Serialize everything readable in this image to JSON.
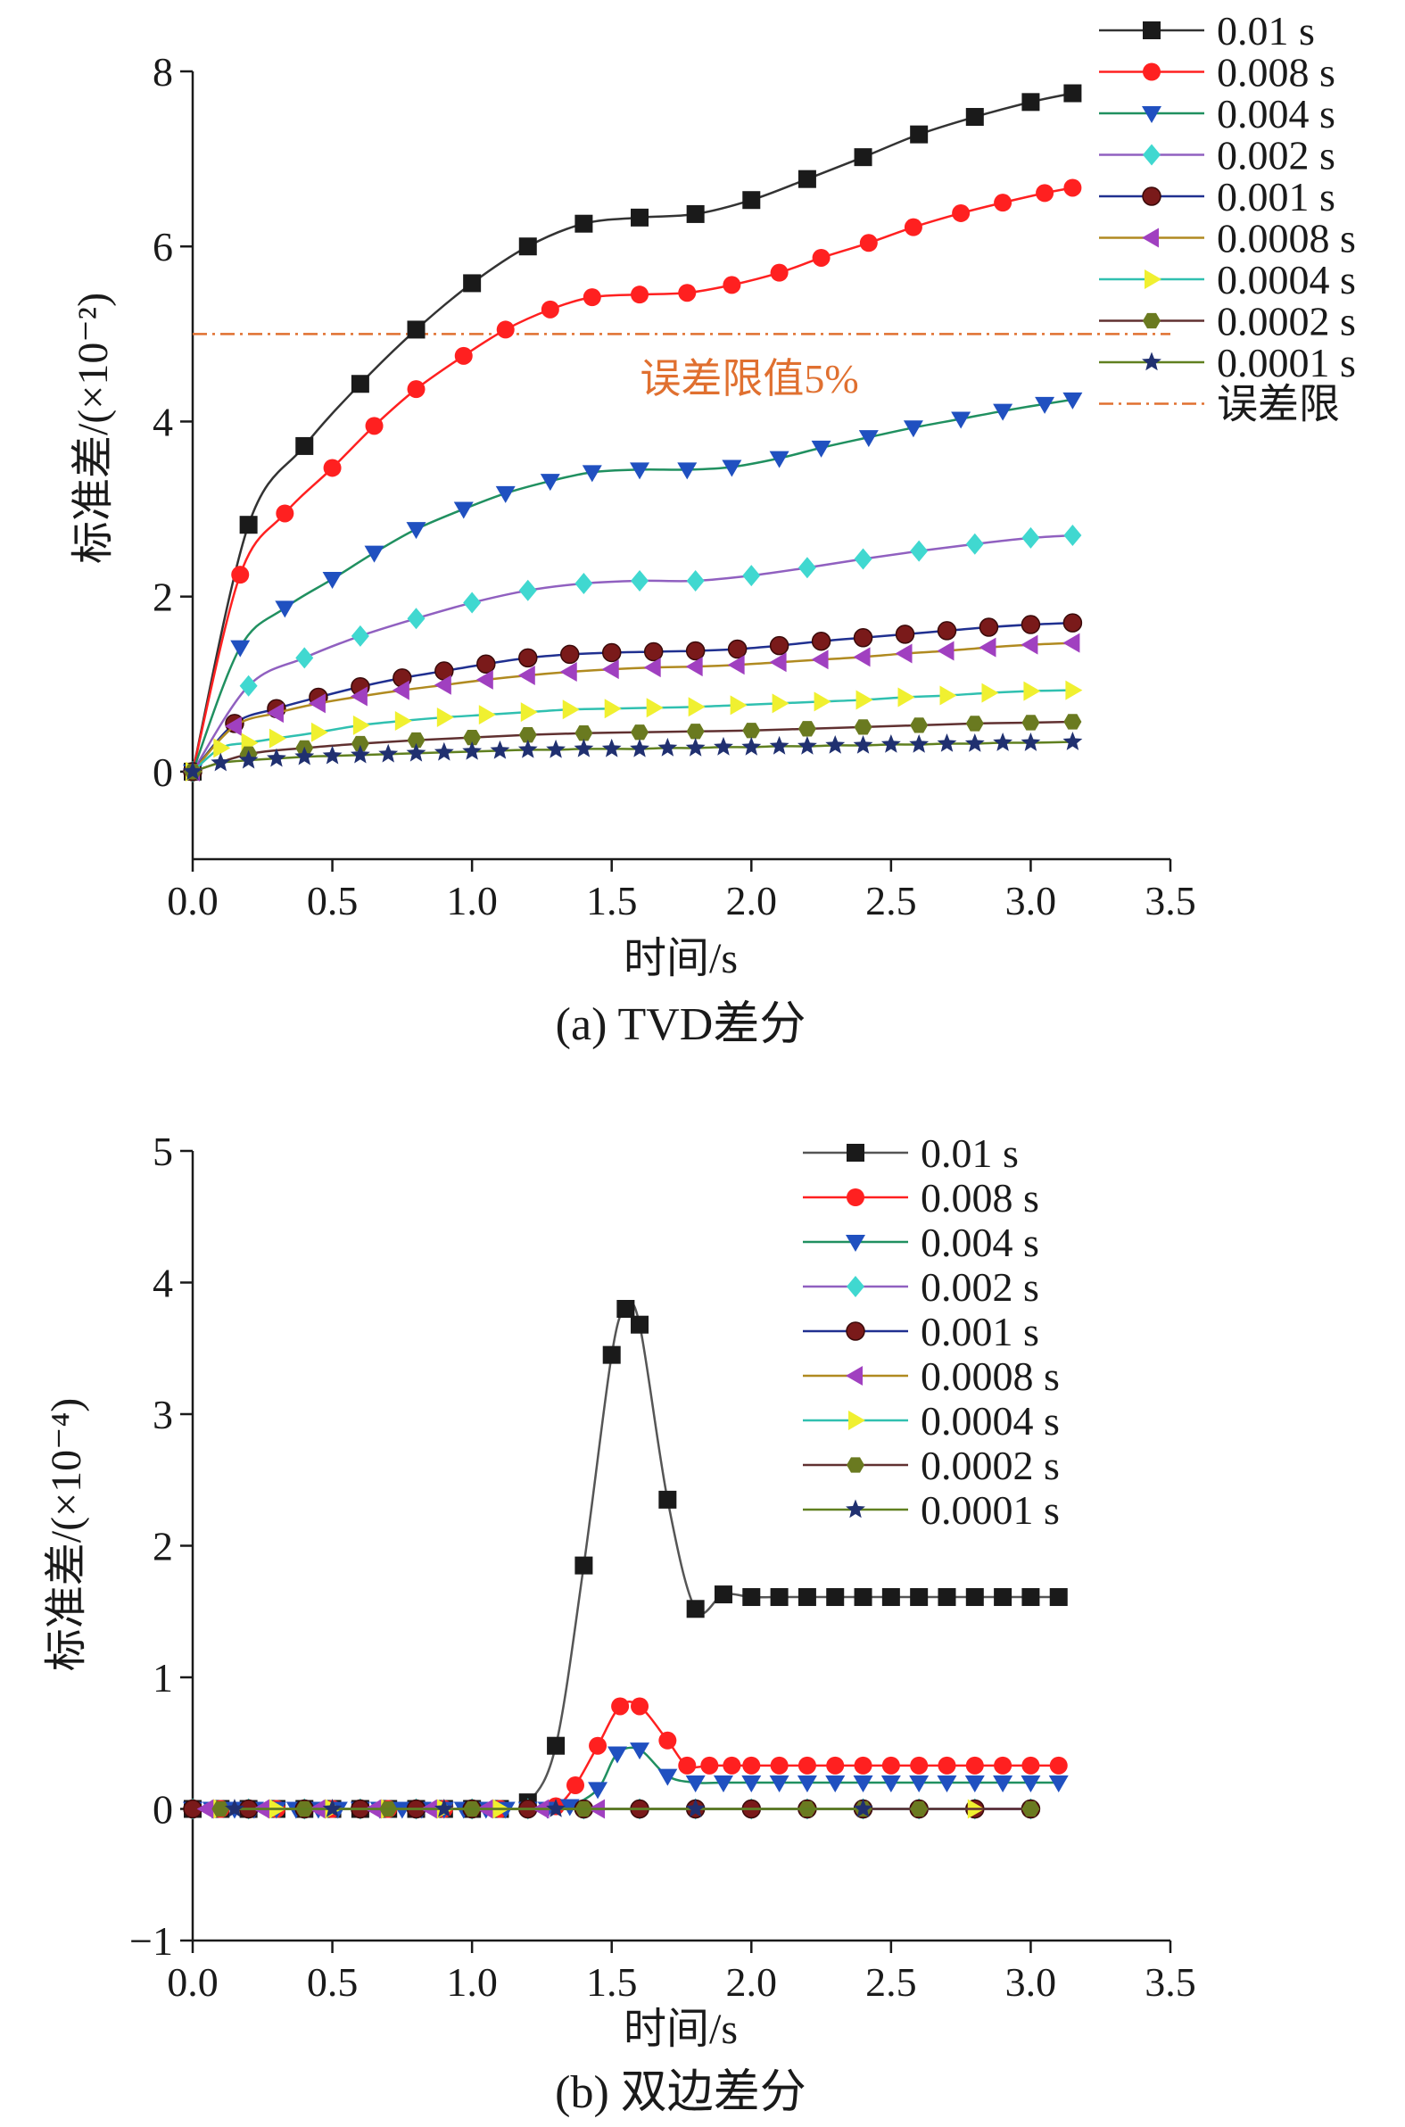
{
  "chart_data": [
    {
      "type": "line",
      "caption": "(a) TVD差分",
      "xlabel": "时间/s",
      "ylabel": "标准差/(×10⁻²)",
      "xlim": [
        0,
        3.5
      ],
      "ylim": [
        -1,
        8
      ],
      "xticks": [
        "0.0",
        "0.5",
        "1.0",
        "1.5",
        "2.0",
        "2.5",
        "3.0",
        "3.5"
      ],
      "yticks": [
        "0",
        "2",
        "4",
        "6",
        "8"
      ],
      "legend_position": "top-right",
      "reference_line": {
        "name": "误差限",
        "y": 5,
        "label": "误差限值5%",
        "color": "#e07030"
      },
      "series": [
        {
          "name": "0.01 s",
          "color": "#333333",
          "marker": "square",
          "markerColor": "#1a1a1a",
          "x": [
            0,
            0.2,
            0.4,
            0.6,
            0.8,
            1.0,
            1.2,
            1.4,
            1.6,
            1.8,
            2.0,
            2.2,
            2.4,
            2.6,
            2.8,
            3.0,
            3.15
          ],
          "y": [
            0,
            2.82,
            3.72,
            4.43,
            5.05,
            5.58,
            6.0,
            6.26,
            6.33,
            6.37,
            6.53,
            6.77,
            7.02,
            7.28,
            7.48,
            7.65,
            7.75
          ]
        },
        {
          "name": "0.008 s",
          "color": "#ff2020",
          "marker": "circle",
          "markerColor": "#ff2020",
          "x": [
            0,
            0.17,
            0.33,
            0.5,
            0.65,
            0.8,
            0.97,
            1.12,
            1.28,
            1.43,
            1.6,
            1.77,
            1.93,
            2.1,
            2.25,
            2.42,
            2.58,
            2.75,
            2.9,
            3.05,
            3.15
          ],
          "y": [
            0,
            2.25,
            2.95,
            3.47,
            3.95,
            4.37,
            4.75,
            5.05,
            5.28,
            5.42,
            5.45,
            5.47,
            5.56,
            5.7,
            5.87,
            6.04,
            6.22,
            6.38,
            6.5,
            6.61,
            6.67
          ]
        },
        {
          "name": "0.004 s",
          "color": "#209060",
          "marker": "triangle-down",
          "markerColor": "#2050c0",
          "x": [
            0,
            0.17,
            0.33,
            0.5,
            0.65,
            0.8,
            0.97,
            1.12,
            1.28,
            1.43,
            1.6,
            1.77,
            1.93,
            2.1,
            2.25,
            2.42,
            2.58,
            2.75,
            2.9,
            3.05,
            3.15
          ],
          "y": [
            0,
            1.42,
            1.87,
            2.2,
            2.5,
            2.77,
            3.0,
            3.18,
            3.32,
            3.42,
            3.45,
            3.45,
            3.48,
            3.58,
            3.7,
            3.82,
            3.93,
            4.03,
            4.12,
            4.2,
            4.25
          ]
        },
        {
          "name": "0.002 s",
          "color": "#9060c0",
          "marker": "diamond",
          "markerColor": "#40d8d0",
          "x": [
            0,
            0.2,
            0.4,
            0.6,
            0.8,
            1.0,
            1.2,
            1.4,
            1.6,
            1.8,
            2.0,
            2.2,
            2.4,
            2.6,
            2.8,
            3.0,
            3.15
          ],
          "y": [
            0,
            0.98,
            1.3,
            1.55,
            1.75,
            1.93,
            2.07,
            2.15,
            2.18,
            2.18,
            2.24,
            2.33,
            2.43,
            2.52,
            2.6,
            2.67,
            2.7
          ]
        },
        {
          "name": "0.001 s",
          "color": "#203090",
          "marker": "ball",
          "markerColor": "#7a1a1a",
          "x": [
            0,
            0.15,
            0.3,
            0.45,
            0.6,
            0.75,
            0.9,
            1.05,
            1.2,
            1.35,
            1.5,
            1.65,
            1.8,
            1.95,
            2.1,
            2.25,
            2.4,
            2.55,
            2.7,
            2.85,
            3.0,
            3.15
          ],
          "y": [
            0,
            0.55,
            0.72,
            0.85,
            0.97,
            1.07,
            1.15,
            1.23,
            1.3,
            1.34,
            1.36,
            1.37,
            1.38,
            1.4,
            1.44,
            1.49,
            1.53,
            1.57,
            1.61,
            1.65,
            1.68,
            1.7
          ]
        },
        {
          "name": "0.0008 s",
          "color": "#b08a20",
          "marker": "triangle-left",
          "markerColor": "#a040c0",
          "x": [
            0,
            0.15,
            0.3,
            0.45,
            0.6,
            0.75,
            0.9,
            1.05,
            1.2,
            1.35,
            1.5,
            1.65,
            1.8,
            1.95,
            2.1,
            2.25,
            2.4,
            2.55,
            2.7,
            2.85,
            3.0,
            3.15
          ],
          "y": [
            0,
            0.52,
            0.67,
            0.78,
            0.86,
            0.93,
            0.99,
            1.05,
            1.1,
            1.14,
            1.17,
            1.19,
            1.2,
            1.22,
            1.25,
            1.28,
            1.31,
            1.35,
            1.38,
            1.42,
            1.45,
            1.47
          ]
        },
        {
          "name": "0.0004 s",
          "color": "#30c0b0",
          "marker": "triangle-right",
          "markerColor": "#f0f030",
          "x": [
            0,
            0.1,
            0.2,
            0.3,
            0.45,
            0.6,
            0.75,
            0.9,
            1.05,
            1.2,
            1.35,
            1.5,
            1.65,
            1.8,
            1.95,
            2.1,
            2.25,
            2.4,
            2.55,
            2.7,
            2.85,
            3.0,
            3.15
          ],
          "y": [
            0,
            0.27,
            0.33,
            0.38,
            0.45,
            0.53,
            0.58,
            0.62,
            0.65,
            0.68,
            0.71,
            0.72,
            0.73,
            0.74,
            0.76,
            0.78,
            0.8,
            0.82,
            0.85,
            0.87,
            0.9,
            0.92,
            0.93
          ]
        },
        {
          "name": "0.0002 s",
          "color": "#603030",
          "marker": "hexagon",
          "markerColor": "#6a7a20",
          "x": [
            0,
            0.2,
            0.4,
            0.6,
            0.8,
            1.0,
            1.2,
            1.4,
            1.6,
            1.8,
            2.0,
            2.2,
            2.4,
            2.6,
            2.8,
            3.0,
            3.15
          ],
          "y": [
            0,
            0.2,
            0.27,
            0.32,
            0.36,
            0.39,
            0.42,
            0.44,
            0.45,
            0.46,
            0.47,
            0.49,
            0.51,
            0.53,
            0.55,
            0.56,
            0.57
          ]
        },
        {
          "name": "0.0001 s",
          "color": "#608020",
          "marker": "star",
          "markerColor": "#203070",
          "x": [
            0,
            0.1,
            0.2,
            0.3,
            0.4,
            0.5,
            0.6,
            0.7,
            0.8,
            0.9,
            1.0,
            1.1,
            1.2,
            1.3,
            1.4,
            1.5,
            1.6,
            1.7,
            1.8,
            1.9,
            2.0,
            2.1,
            2.2,
            2.3,
            2.4,
            2.5,
            2.6,
            2.7,
            2.8,
            2.9,
            3.0,
            3.15
          ],
          "y": [
            0,
            0.1,
            0.13,
            0.15,
            0.17,
            0.18,
            0.19,
            0.2,
            0.21,
            0.22,
            0.23,
            0.24,
            0.25,
            0.25,
            0.26,
            0.26,
            0.26,
            0.27,
            0.27,
            0.28,
            0.28,
            0.29,
            0.29,
            0.3,
            0.3,
            0.31,
            0.31,
            0.32,
            0.32,
            0.33,
            0.33,
            0.34
          ]
        }
      ]
    },
    {
      "type": "line",
      "caption": "(b) 双边差分",
      "xlabel": "时间/s",
      "ylabel": "标准差/(×10⁻⁴)",
      "xlim": [
        0,
        3.5
      ],
      "ylim": [
        -1,
        5
      ],
      "xticks": [
        "0.0",
        "0.5",
        "1.0",
        "1.5",
        "2.0",
        "2.5",
        "3.0",
        "3.5"
      ],
      "yticks": [
        "−1",
        "0",
        "1",
        "2",
        "3",
        "4",
        "5"
      ],
      "legend_position": "top-right",
      "series": [
        {
          "name": "0.01 s",
          "color": "#555555",
          "marker": "square",
          "markerColor": "#1a1a1a",
          "x": [
            0,
            0.1,
            0.2,
            0.3,
            0.4,
            0.5,
            0.6,
            0.7,
            0.8,
            0.9,
            1.0,
            1.1,
            1.2,
            1.3,
            1.4,
            1.5,
            1.55,
            1.6,
            1.7,
            1.8,
            1.9,
            2.0,
            2.1,
            2.2,
            2.3,
            2.4,
            2.5,
            2.6,
            2.7,
            2.8,
            2.9,
            3.0,
            3.1
          ],
          "y": [
            0,
            0,
            0,
            0,
            0,
            0,
            0,
            0,
            0,
            0,
            0,
            0,
            0.05,
            0.48,
            1.85,
            3.45,
            3.8,
            3.68,
            2.35,
            1.52,
            1.63,
            1.61,
            1.61,
            1.61,
            1.61,
            1.61,
            1.61,
            1.61,
            1.61,
            1.61,
            1.61,
            1.61,
            1.61
          ]
        },
        {
          "name": "0.008 s",
          "color": "#ff2020",
          "marker": "circle",
          "markerColor": "#ff2020",
          "x": [
            0,
            0.1,
            0.2,
            0.3,
            0.4,
            0.5,
            0.6,
            0.7,
            0.8,
            0.9,
            1.0,
            1.1,
            1.2,
            1.3,
            1.37,
            1.45,
            1.53,
            1.6,
            1.7,
            1.77,
            1.85,
            1.93,
            2.0,
            2.1,
            2.2,
            2.3,
            2.4,
            2.5,
            2.6,
            2.7,
            2.8,
            2.9,
            3.0,
            3.1
          ],
          "y": [
            0,
            0,
            0,
            0,
            0,
            0,
            0,
            0,
            0,
            0,
            0,
            0,
            0,
            0.02,
            0.18,
            0.48,
            0.78,
            0.78,
            0.52,
            0.33,
            0.33,
            0.33,
            0.33,
            0.33,
            0.33,
            0.33,
            0.33,
            0.33,
            0.33,
            0.33,
            0.33,
            0.33,
            0.33,
            0.33
          ]
        },
        {
          "name": "0.004 s",
          "color": "#209060",
          "marker": "triangle-down",
          "markerColor": "#2050c0",
          "x": [
            0,
            0.07,
            0.15,
            0.22,
            0.3,
            0.37,
            0.45,
            0.52,
            0.6,
            0.67,
            0.75,
            0.82,
            0.9,
            0.97,
            1.05,
            1.12,
            1.2,
            1.27,
            1.35,
            1.45,
            1.52,
            1.6,
            1.7,
            1.8,
            1.9,
            2.0,
            2.1,
            2.2,
            2.3,
            2.4,
            2.5,
            2.6,
            2.7,
            2.8,
            2.9,
            3.0,
            3.1
          ],
          "y": [
            0,
            0,
            0,
            0,
            0,
            0,
            0,
            0,
            0,
            0,
            0,
            0,
            0,
            0,
            0,
            0,
            0,
            0,
            0.02,
            0.15,
            0.42,
            0.45,
            0.25,
            0.2,
            0.2,
            0.2,
            0.2,
            0.2,
            0.2,
            0.2,
            0.2,
            0.2,
            0.2,
            0.2,
            0.2,
            0.2,
            0.2
          ]
        },
        {
          "name": "0.002 s",
          "color": "#9060c0",
          "marker": "diamond",
          "markerColor": "#40d8d0",
          "x": [
            0,
            0.2,
            0.4,
            0.6,
            0.8,
            1.0,
            1.2,
            1.4,
            1.6,
            1.8,
            2.0,
            2.2,
            2.4,
            2.6,
            2.8,
            3.0
          ],
          "y": [
            0,
            0,
            0,
            0,
            0,
            0,
            0,
            0,
            0,
            0,
            0,
            0,
            0,
            0,
            0,
            0
          ]
        },
        {
          "name": "0.001 s",
          "color": "#203090",
          "marker": "ball",
          "markerColor": "#7a1a1a",
          "x": [
            0,
            0.2,
            0.4,
            0.6,
            0.8,
            1.0,
            1.2,
            1.4,
            1.6,
            1.8,
            2.0,
            2.2,
            2.4,
            2.6,
            2.8,
            3.0
          ],
          "y": [
            0,
            0,
            0,
            0,
            0,
            0,
            0,
            0,
            0,
            0,
            0,
            0,
            0,
            0,
            0,
            0
          ]
        },
        {
          "name": "0.0008 s",
          "color": "#b08a20",
          "marker": "triangle-left",
          "markerColor": "#a040c0",
          "x": [
            0.05,
            0.25,
            0.45,
            0.65,
            0.85,
            1.05,
            1.25,
            1.45
          ],
          "y": [
            0,
            0,
            0,
            0,
            0,
            0,
            0,
            0
          ]
        },
        {
          "name": "0.0004 s",
          "color": "#30c0b0",
          "marker": "triangle-right",
          "markerColor": "#f0f030",
          "x": [
            0.1,
            0.3,
            0.5,
            0.7,
            0.9,
            1.1,
            2.8
          ],
          "y": [
            0,
            0,
            0,
            0,
            0,
            0,
            0
          ]
        },
        {
          "name": "0.0002 s",
          "color": "#603030",
          "marker": "hexagon",
          "markerColor": "#6a7a20",
          "x": [
            0.1,
            0.4,
            0.7,
            1.0,
            1.4,
            2.2,
            2.4,
            2.6,
            3.0
          ],
          "y": [
            0,
            0,
            0,
            0,
            0,
            0,
            0,
            0,
            0
          ]
        },
        {
          "name": "0.0001 s",
          "color": "#608020",
          "marker": "star",
          "markerColor": "#203070",
          "x": [
            0.15,
            0.5,
            0.9,
            1.3,
            1.8,
            2.4
          ],
          "y": [
            0,
            0,
            0,
            0,
            0,
            0
          ]
        }
      ]
    }
  ]
}
